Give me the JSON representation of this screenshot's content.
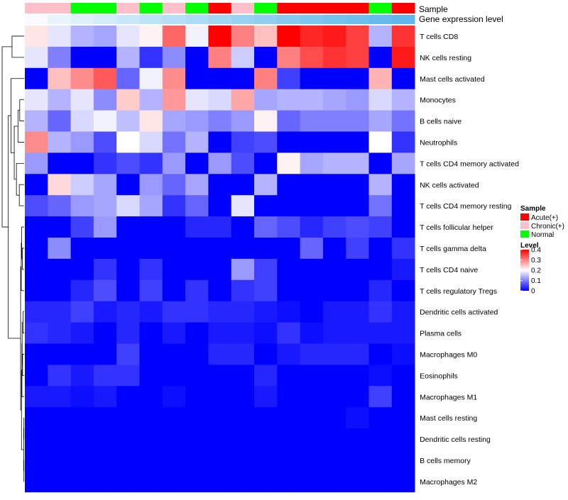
{
  "chart_data": {
    "type": "heatmap",
    "annotation_titles": {
      "sample": "Sample",
      "gene": "Gene expression level"
    },
    "legend": {
      "sample_title": "Sample",
      "sample_entries": [
        {
          "label": "Acute(+)",
          "color": "#ff0000"
        },
        {
          "label": "Chronic(+)",
          "color": "#ffc0cb"
        },
        {
          "label": "Normal",
          "color": "#00ff00"
        }
      ],
      "level_title": "Level",
      "level_ticks": [
        "0.4",
        "0.3",
        "0.2",
        "0.1",
        "0"
      ],
      "level_tick_values": [
        0.4,
        0.3,
        0.2,
        0.1,
        0
      ],
      "color_stops": [
        {
          "value": 0,
          "color": "#0000ff"
        },
        {
          "value": 0.2,
          "color": "#ffffff"
        },
        {
          "value": 0.4,
          "color": "#ff0000"
        }
      ],
      "range": [
        0,
        0.4
      ]
    },
    "sample_colors": {
      "Acute(+)": "#ff0000",
      "Chronic(+)": "#ffc0cb",
      "Normal": "#00ff00"
    },
    "columns": {
      "sample_group": [
        "Chronic(+)",
        "Chronic(+)",
        "Normal",
        "Normal",
        "Chronic(+)",
        "Normal",
        "Chronic(+)",
        "Normal",
        "Acute(+)",
        "Chronic(+)",
        "Normal",
        "Acute(+)",
        "Acute(+)",
        "Acute(+)",
        "Acute(+)",
        "Normal",
        "Acute(+)"
      ],
      "expression_level": [
        0.05,
        0.1,
        0.15,
        0.2,
        0.25,
        0.3,
        0.35,
        0.4,
        0.45,
        0.5,
        0.55,
        0.6,
        0.65,
        0.7,
        0.75,
        0.8,
        0.85
      ],
      "expression_colors": [
        "#f7fbff",
        "#e8f4fc",
        "#ddf0fb",
        "#d3ecfa",
        "#c8e7f8",
        "#bde3f7",
        "#b4dff6",
        "#abdbf5",
        "#a2d7f4",
        "#98d2f2",
        "#8fcef1",
        "#86caf0",
        "#7dc6ef",
        "#75c2ee",
        "#6ebfed",
        "#67bbec",
        "#5fb7eb"
      ]
    },
    "rows": [
      {
        "label": "T cells CD8",
        "values": [
          0.22,
          0.18,
          0.14,
          0.13,
          0.18,
          0.21,
          0.32,
          0.19,
          0.4,
          0.3,
          0.25,
          0.4,
          0.37,
          0.38,
          0.35,
          0.14,
          0.36
        ]
      },
      {
        "label": "NK cells resting",
        "values": [
          0.18,
          0.1,
          0.0,
          0.0,
          0.14,
          0.04,
          0.11,
          0.0,
          0.3,
          0.16,
          0.0,
          0.3,
          0.34,
          0.36,
          0.35,
          0.0,
          0.38
        ]
      },
      {
        "label": "Mast cells activated",
        "values": [
          0.0,
          0.25,
          0.29,
          0.33,
          0.08,
          0.19,
          0.29,
          0.0,
          0.0,
          0.0,
          0.3,
          0.05,
          0.0,
          0.0,
          0.0,
          0.26,
          0.0
        ]
      },
      {
        "label": "Monocytes",
        "values": [
          0.18,
          0.14,
          0.18,
          0.11,
          0.24,
          0.14,
          0.28,
          0.18,
          0.17,
          0.27,
          0.13,
          0.14,
          0.14,
          0.13,
          0.12,
          0.17,
          0.14
        ]
      },
      {
        "label": "B cells naive",
        "values": [
          0.14,
          0.08,
          0.17,
          0.19,
          0.15,
          0.22,
          0.13,
          0.12,
          0.1,
          0.12,
          0.21,
          0.08,
          0.1,
          0.1,
          0.1,
          0.13,
          0.09
        ]
      },
      {
        "label": "Neutrophils",
        "values": [
          0.29,
          0.14,
          0.12,
          0.06,
          0.2,
          0.17,
          0.09,
          0.14,
          0.0,
          0.05,
          0.06,
          0.0,
          0.0,
          0.0,
          0.0,
          0.2,
          0.04
        ]
      },
      {
        "label": "T cells CD4 memory activated",
        "values": [
          0.12,
          0.0,
          0.0,
          0.04,
          0.06,
          0.04,
          0.12,
          0.0,
          0.12,
          0.06,
          0.0,
          0.21,
          0.13,
          0.14,
          0.14,
          0.0,
          0.13
        ]
      },
      {
        "label": "NK cells activated",
        "values": [
          0.0,
          0.23,
          0.16,
          0.13,
          0.0,
          0.12,
          0.08,
          0.13,
          0.0,
          0.0,
          0.14,
          0.0,
          0.0,
          0.0,
          0.0,
          0.14,
          0.0
        ]
      },
      {
        "label": "T cells CD4 memory resting",
        "values": [
          0.06,
          0.08,
          0.12,
          0.13,
          0.17,
          0.13,
          0.04,
          0.08,
          0.0,
          0.18,
          0.0,
          0.0,
          0.0,
          0.0,
          0.0,
          0.09,
          0.0
        ]
      },
      {
        "label": "T cells follicular helper",
        "values": [
          0.0,
          0.0,
          0.05,
          0.12,
          0.0,
          0.0,
          0.0,
          0.03,
          0.03,
          0.0,
          0.08,
          0.06,
          0.03,
          0.05,
          0.06,
          0.05,
          0.0
        ]
      },
      {
        "label": "T cells gamma delta",
        "values": [
          0.0,
          0.11,
          0.0,
          0.0,
          0.0,
          0.0,
          0.0,
          0.0,
          0.0,
          0.0,
          0.0,
          0.0,
          0.08,
          0.0,
          0.05,
          0.0,
          0.04
        ]
      },
      {
        "label": "T cells CD4 naive",
        "values": [
          0.0,
          0.0,
          0.0,
          0.04,
          0.0,
          0.04,
          0.0,
          0.0,
          0.0,
          0.12,
          0.05,
          0.0,
          0.0,
          0.0,
          0.0,
          0.0,
          0.02
        ]
      },
      {
        "label": "T cells regulatory  Tregs",
        "values": [
          0.0,
          0.0,
          0.03,
          0.06,
          0.0,
          0.05,
          0.0,
          0.04,
          0.0,
          0.04,
          0.05,
          0.0,
          0.0,
          0.0,
          0.0,
          0.03,
          0.0
        ]
      },
      {
        "label": "Dendritic cells activated",
        "values": [
          0.03,
          0.03,
          0.05,
          0.02,
          0.03,
          0.02,
          0.04,
          0.04,
          0.03,
          0.03,
          0.02,
          0.01,
          0.0,
          0.02,
          0.02,
          0.04,
          0.02
        ]
      },
      {
        "label": "Plasma cells",
        "values": [
          0.04,
          0.03,
          0.02,
          0.0,
          0.03,
          0.0,
          0.02,
          0.0,
          0.02,
          0.02,
          0.01,
          0.04,
          0.01,
          0.02,
          0.02,
          0.02,
          0.02
        ]
      },
      {
        "label": "Macrophages M0",
        "values": [
          0.0,
          0.0,
          0.0,
          0.0,
          0.05,
          0.0,
          0.0,
          0.0,
          0.03,
          0.03,
          0.0,
          0.02,
          0.03,
          0.03,
          0.03,
          0.0,
          0.01
        ]
      },
      {
        "label": "Eosinophils",
        "values": [
          0.0,
          0.04,
          0.02,
          0.04,
          0.04,
          0.0,
          0.0,
          0.0,
          0.0,
          0.0,
          0.03,
          0.0,
          0.0,
          0.0,
          0.0,
          0.01,
          0.0
        ]
      },
      {
        "label": "Macrophages M1",
        "values": [
          0.02,
          0.02,
          0.01,
          0.02,
          0.0,
          0.0,
          0.01,
          0.0,
          0.0,
          0.0,
          0.02,
          0.0,
          0.0,
          0.0,
          0.0,
          0.05,
          0.0
        ]
      },
      {
        "label": "Mast cells resting",
        "values": [
          0.0,
          0.0,
          0.0,
          0.0,
          0.0,
          0.0,
          0.0,
          0.0,
          0.0,
          0.0,
          0.0,
          0.0,
          0.0,
          0.0,
          0.01,
          0.0,
          0.0
        ]
      },
      {
        "label": "Dendritic cells resting",
        "values": [
          0.0,
          0.0,
          0.0,
          0.0,
          0.0,
          0.0,
          0.0,
          0.0,
          0.0,
          0.0,
          0.0,
          0.0,
          0.0,
          0.0,
          0.0,
          0.0,
          0.0
        ]
      },
      {
        "label": "B cells memory",
        "values": [
          0.0,
          0.0,
          0.0,
          0.0,
          0.0,
          0.0,
          0.0,
          0.0,
          0.0,
          0.0,
          0.0,
          0.0,
          0.0,
          0.0,
          0.0,
          0.0,
          0.0
        ]
      },
      {
        "label": "Macrophages M2",
        "values": [
          0.0,
          0.0,
          0.0,
          0.0,
          0.0,
          0.0,
          0.0,
          0.0,
          0.0,
          0.0,
          0.0,
          0.0,
          0.0,
          0.0,
          0.0,
          0.0,
          0.0
        ]
      }
    ]
  }
}
